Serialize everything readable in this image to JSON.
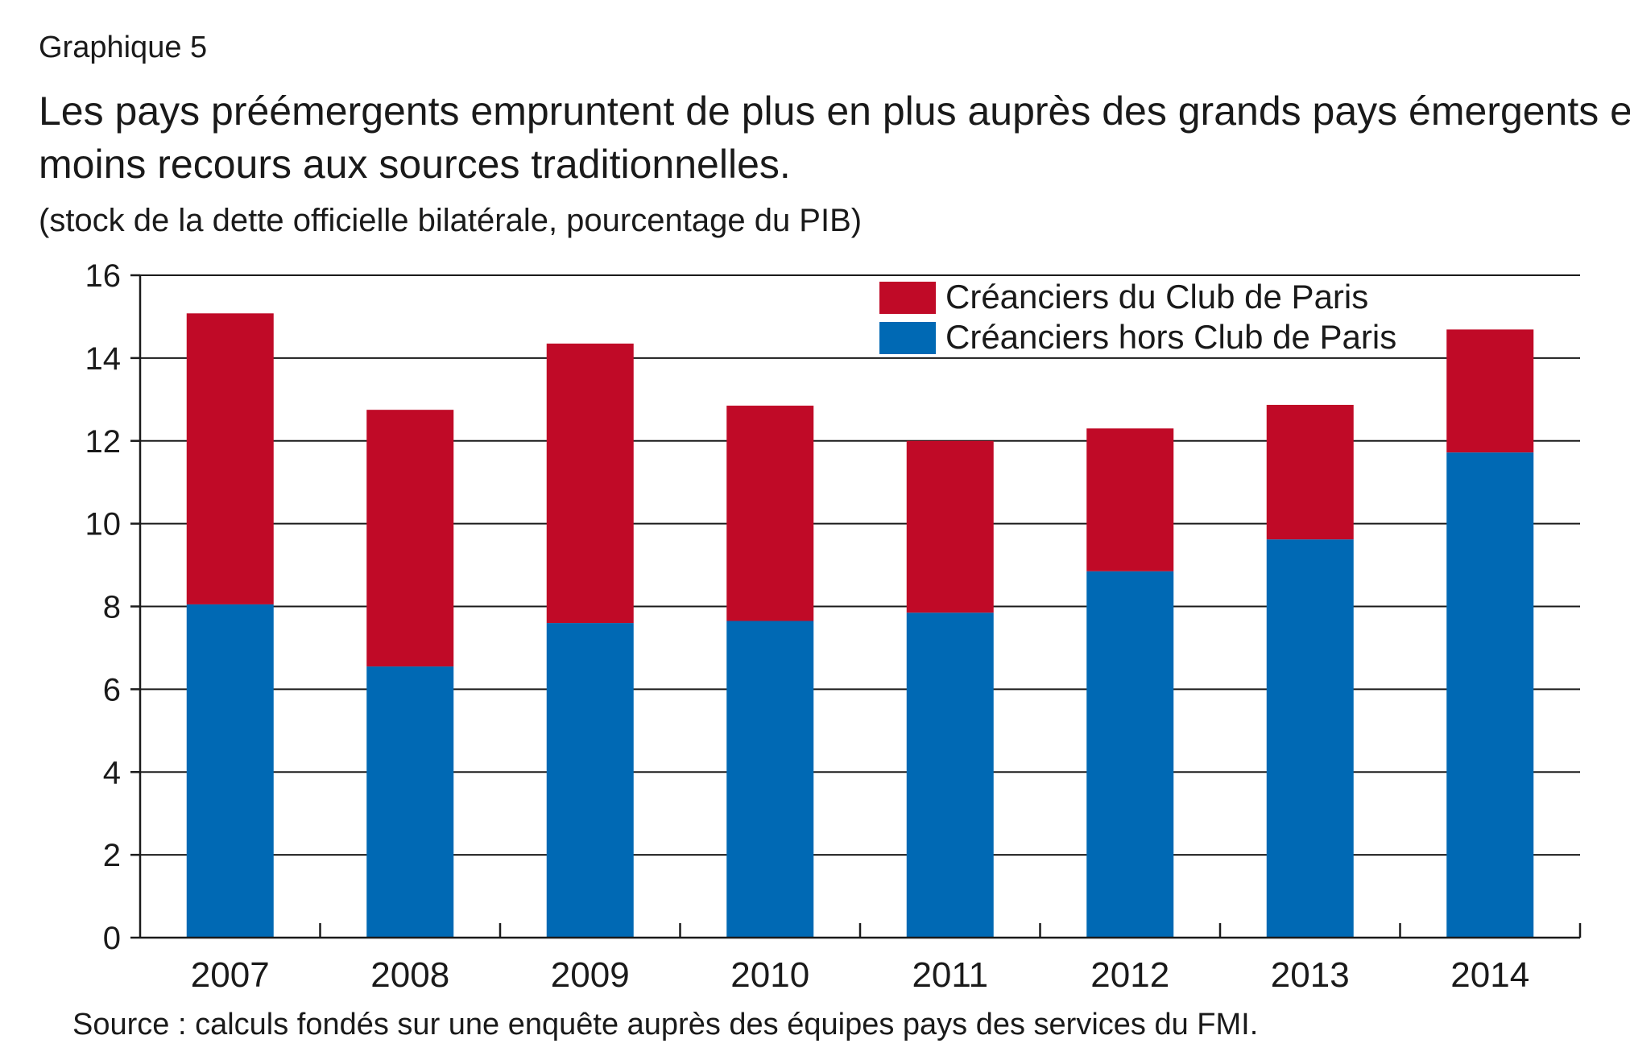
{
  "header": {
    "figure_label": "Graphique 5",
    "title_line1": "Les pays préémergents empruntent de plus en plus auprès des grands pays émergents et ont",
    "title_line2": "moins recours aux sources traditionnelles.",
    "subtitle": "(stock de la dette officielle bilatérale, pourcentage du PIB)"
  },
  "footer": {
    "source": "Source : calculs fondés sur une enquête auprès des équipes pays des services du FMI."
  },
  "colors": {
    "club_de_paris": "#c00a27",
    "hors_club_de_paris": "#0069b4",
    "axis": "#1a1a1a"
  },
  "chart_data": {
    "type": "bar",
    "stacked": true,
    "title": "Les pays préémergents empruntent de plus en plus auprès des grands pays émergents et ont moins recours aux sources traditionnelles.",
    "subtitle": "(stock de la dette officielle bilatérale, pourcentage du PIB)",
    "xlabel": "",
    "ylabel": "",
    "categories": [
      "2007",
      "2008",
      "2009",
      "2010",
      "2011",
      "2012",
      "2013",
      "2014"
    ],
    "ylim": [
      0,
      16
    ],
    "yticks": [
      "0",
      "2",
      "4",
      "6",
      "8",
      "10",
      "12",
      "14",
      "16"
    ],
    "grid": true,
    "legend_position": "top-right",
    "series": [
      {
        "name": "Créanciers hors Club de Paris",
        "color": "#0069b4",
        "values": [
          8.05,
          6.55,
          7.6,
          7.65,
          7.85,
          8.85,
          9.62,
          11.72
        ]
      },
      {
        "name": "Créanciers du Club de Paris",
        "color": "#c00a27",
        "values": [
          7.03,
          6.2,
          6.75,
          5.2,
          4.15,
          3.45,
          3.25,
          2.97
        ]
      }
    ],
    "legend_order": [
      "Créanciers du Club de Paris",
      "Créanciers hors Club de Paris"
    ]
  }
}
